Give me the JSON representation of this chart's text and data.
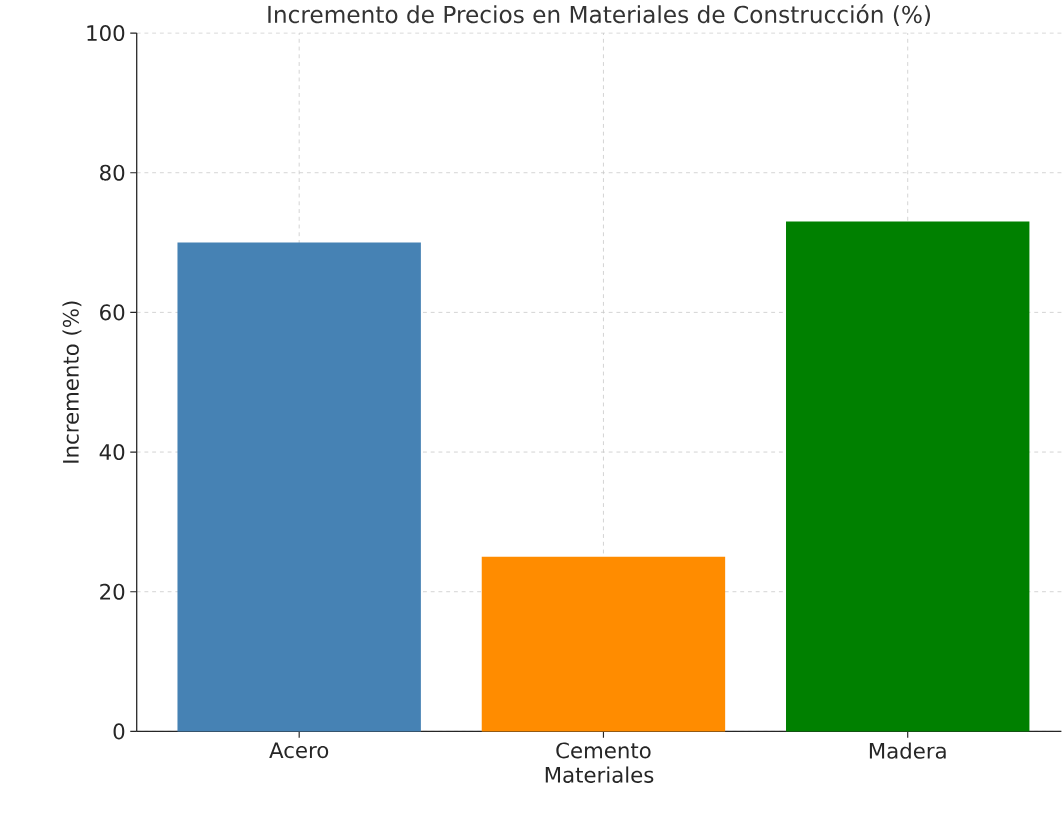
{
  "chart_data": {
    "type": "bar",
    "title": "Incremento de Precios en Materiales de Construcción (%)",
    "xlabel": "Materiales",
    "ylabel": "Incremento (%)",
    "categories": [
      "Acero",
      "Cemento",
      "Madera"
    ],
    "values": [
      70,
      25,
      73
    ],
    "colors": [
      "#4682b4",
      "#ff8c00",
      "#008000"
    ],
    "ylim": [
      0,
      100
    ],
    "yticks": [
      0,
      20,
      40,
      60,
      80,
      100
    ],
    "grid": true
  }
}
